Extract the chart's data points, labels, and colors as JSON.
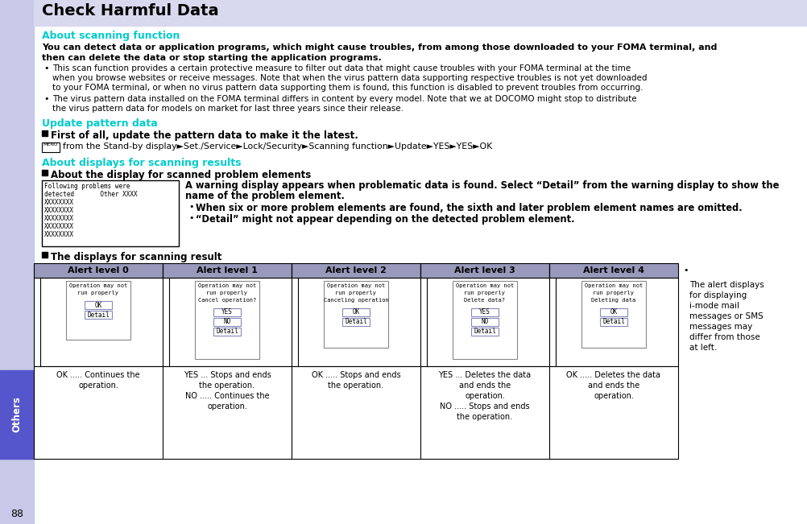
{
  "title": "Check Harmful Data",
  "teal": "#00cccc",
  "purple_hdr": "#9999bb",
  "sidebar_lav": "#c8c8e8",
  "sidebar_blue": "#5555cc",
  "title_bg": "#d8d8ee",
  "section1_title": "About scanning function",
  "section1_bold_l1": "You can detect data or application programs, which might cause troubles, from among those downloaded to your FOMA terminal, and",
  "section1_bold_l2": "then can delete the data or stop starting the application programs.",
  "bullet1_l1": "This scan function provides a certain protective measure to filter out data that might cause troubles with your FOMA terminal at the time",
  "bullet1_l2": "when you browse websites or receive messages. Note that when the virus pattern data supporting respective troubles is not yet downloaded",
  "bullet1_l3": "to your FOMA terminal, or when no virus pattern data supporting them is found, this function is disabled to prevent troubles from occurring.",
  "bullet2_l1": "The virus pattern data installed on the FOMA terminal differs in content by every model. Note that we at DOCOMO might stop to distribute",
  "bullet2_l2": "the virus pattern data for models on market for last three years since their release.",
  "section2_title": "Update pattern data",
  "section2_bold": "First of all, update the pattern data to make it the latest.",
  "section2_menu": "from the Stand-by display►Set./Service►Lock/Security►Scanning function►Update►YES►YES►OK",
  "section3_title": "About displays for scanning results",
  "section3_sub": "About the display for scanned problem elements",
  "section3_desc_l1": "A warning display appears when problematic data is found. Select “Detail” from the warning display to show the",
  "section3_desc_l2": "name of the problem element.",
  "section3_b1": "When six or more problem elements are found, the sixth and later problem element names are omitted.",
  "section3_b2": "“Detail” might not appear depending on the detected problem element.",
  "table_title": "The displays for scanning result",
  "alert_headers": [
    "Alert level 0",
    "Alert level 1",
    "Alert level 2",
    "Alert level 3",
    "Alert level 4"
  ],
  "alert_note_lines": [
    "The alert displays",
    "for displaying",
    "i-mode mail",
    "messages or SMS",
    "messages may",
    "differ from those",
    "at left."
  ],
  "a0_scr": [
    "Operation may not",
    "run properly"
  ],
  "a0_btns": [
    "OK",
    "Detail"
  ],
  "a0_txt_lines": [
    "OK ..... Continues the",
    "           operation."
  ],
  "a1_scr": [
    "Operation may not",
    "run properly",
    "Cancel operation?"
  ],
  "a1_btns": [
    "YES",
    "NO",
    "Detail"
  ],
  "a1_txt_lines": [
    "YES ... Stops and ends",
    "            the operation.",
    "NO ..... Continues the",
    "           operation."
  ],
  "a2_scr": [
    "Operation may not",
    "run properly",
    "Canceling operation"
  ],
  "a2_btns": [
    "OK",
    "Detail"
  ],
  "a2_txt_lines": [
    "OK ..... Stops and ends",
    "           the operation."
  ],
  "a3_scr": [
    "Operation may not",
    "run properly",
    "Delete data?"
  ],
  "a3_btns": [
    "YES",
    "NO",
    "Detail"
  ],
  "a3_txt_lines": [
    "YES ... Deletes the data",
    "          and ends the",
    "          operation.",
    "NO ..... Stops and ends",
    "           the operation."
  ],
  "a4_scr": [
    "Operation may not",
    "run properly",
    "Deleting data"
  ],
  "a4_btns": [
    "OK",
    "Detail"
  ],
  "a4_txt_lines": [
    "OK ..... Deletes the data",
    "          and ends the",
    "          operation."
  ],
  "sidebar_text": "Others",
  "sidebar_num": "88"
}
